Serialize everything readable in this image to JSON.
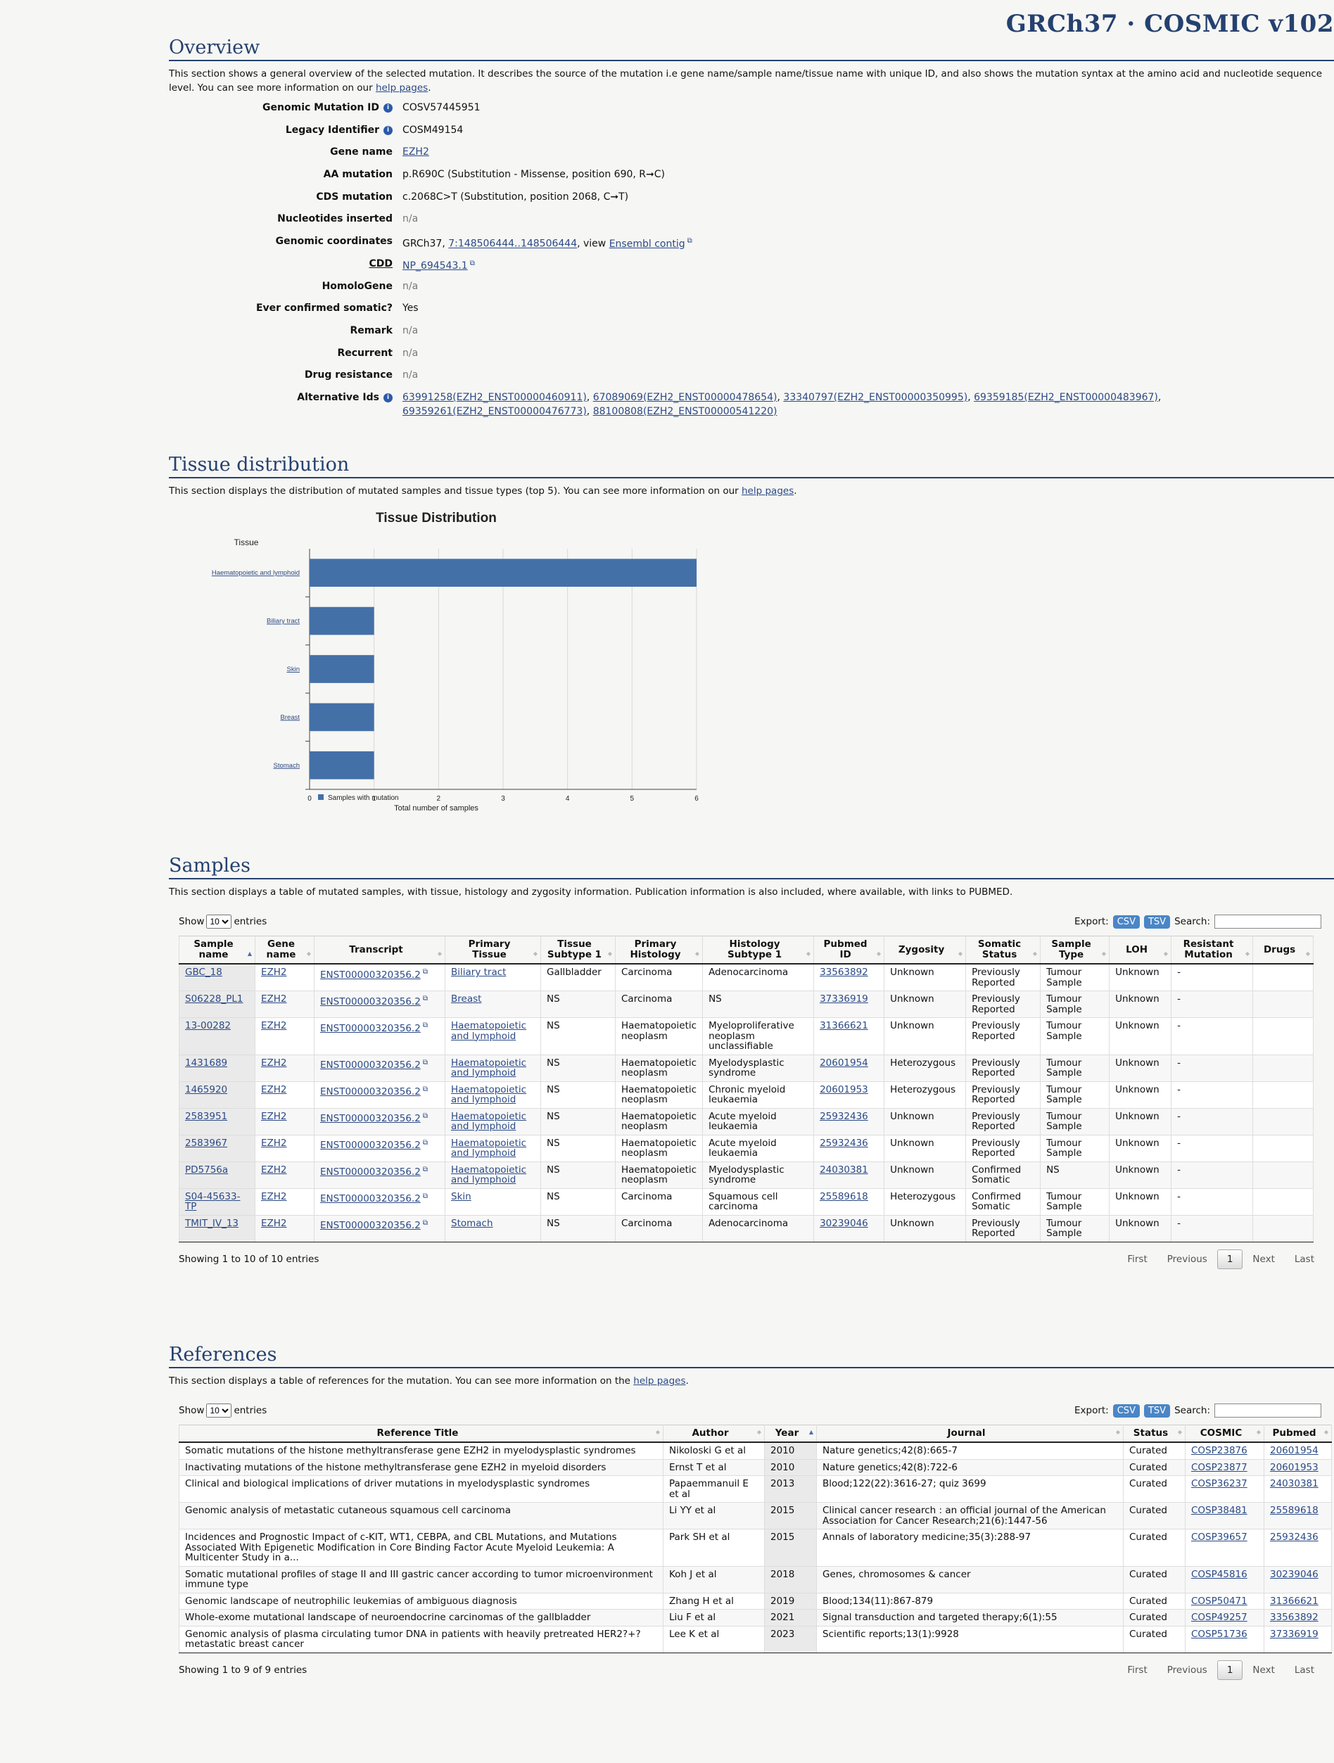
{
  "brand": "GRCh37 · COSMIC v102",
  "overview": {
    "title": "Overview",
    "desc_before": "This section shows a general overview of the selected mutation. It describes the source of the mutation i.e gene name/sample name/tissue name with unique ID, and also shows the mutation syntax at the amino acid and nucleotide sequence level. You can see more information on our ",
    "desc_link": "help pages",
    "desc_after": ".",
    "rows": {
      "genomic_mutation_id": {
        "label": "Genomic Mutation ID",
        "value": "COSV57445951"
      },
      "legacy_identifier": {
        "label": "Legacy Identifier",
        "value": "COSM49154"
      },
      "gene_name": {
        "label": "Gene name",
        "value": "EZH2"
      },
      "aa_mutation": {
        "label": "AA mutation",
        "value": "p.R690C (Substitution - Missense, position 690, R➞C)"
      },
      "cds_mutation": {
        "label": "CDS mutation",
        "value": "c.2068C>T (Substitution, position 2068, C➞T)"
      },
      "nucleotides_inserted": {
        "label": "Nucleotides inserted",
        "value": "n/a"
      },
      "genomic_coordinates": {
        "label": "Genomic coordinates",
        "prefix": "GRCh37, ",
        "link": "7:148506444..148506444",
        "mid": ", view ",
        "link2": "Ensembl contig"
      },
      "cdd": {
        "label": "CDD",
        "value": "NP_694543.1"
      },
      "homologene": {
        "label": "HomoloGene",
        "value": "n/a"
      },
      "ever_confirmed": {
        "label": "Ever confirmed somatic?",
        "value": "Yes"
      },
      "remark": {
        "label": "Remark",
        "value": "n/a"
      },
      "recurrent": {
        "label": "Recurrent",
        "value": "n/a"
      },
      "drug_resistance": {
        "label": "Drug resistance",
        "value": "n/a"
      },
      "alternative_ids": {
        "label": "Alternative Ids",
        "items": [
          "63991258(EZH2_ENST00000460911)",
          "67089069(EZH2_ENST00000478654)",
          "33340797(EZH2_ENST00000350995)",
          "69359185(EZH2_ENST00000483967)",
          "69359261(EZH2_ENST00000476773)",
          "88100808(EZH2_ENST00000541220)"
        ]
      }
    }
  },
  "tissue": {
    "title": "Tissue distribution",
    "desc_before": "This section displays the distribution of mutated samples and tissue types (top 5). You can see more information on our ",
    "desc_link": "help pages",
    "desc_after": "."
  },
  "chart_data": {
    "type": "bar",
    "orientation": "horizontal",
    "title": "Tissue Distribution",
    "ylabel": "Tissue",
    "xlabel": "Total number of samples",
    "categories": [
      "Haematopoietic and lymphoid",
      "Biliary tract",
      "Skin",
      "Breast",
      "Stomach"
    ],
    "series": [
      {
        "name": "Samples with mutation",
        "values": [
          6,
          1,
          1,
          1,
          1
        ],
        "color": "#4470a8"
      }
    ],
    "xlim": [
      0,
      6
    ],
    "xticks": [
      0,
      1,
      2,
      3,
      4,
      5,
      6
    ],
    "grid": true,
    "legend": "bottom-left"
  },
  "samples": {
    "title": "Samples",
    "desc": "This section displays a table of mutated samples, with tissue, histology and zygosity information. Publication information is also included, where available, with links to PUBMED.",
    "show_label": "Show",
    "entries_label": "entries",
    "page_size": "10",
    "export_label": "Export:",
    "csv": "CSV",
    "tsv": "TSV",
    "search_label": "Search:",
    "columns": [
      "Sample name",
      "Gene name",
      "Transcript",
      "Primary Tissue",
      "Tissue Subtype 1",
      "Primary Histology",
      "Histology Subtype 1",
      "Pubmed ID",
      "Zygosity",
      "Somatic Status",
      "Sample Type",
      "LOH",
      "Resistant Mutation",
      "Drugs"
    ],
    "rows": [
      [
        "GBC_18",
        "EZH2",
        "ENST00000320356.2",
        "Biliary tract",
        "Gallbladder",
        "Carcinoma",
        "Adenocarcinoma",
        "33563892",
        "Unknown",
        "Previously Reported",
        "Tumour Sample",
        "Unknown",
        "-",
        ""
      ],
      [
        "S06228_PL1",
        "EZH2",
        "ENST00000320356.2",
        "Breast",
        "NS",
        "Carcinoma",
        "NS",
        "37336919",
        "Unknown",
        "Previously Reported",
        "Tumour Sample",
        "Unknown",
        "-",
        ""
      ],
      [
        "13-00282",
        "EZH2",
        "ENST00000320356.2",
        "Haematopoietic and lymphoid",
        "NS",
        "Haematopoietic neoplasm",
        "Myeloproliferative neoplasm unclassifiable",
        "31366621",
        "Unknown",
        "Previously Reported",
        "Tumour Sample",
        "Unknown",
        "-",
        ""
      ],
      [
        "1431689",
        "EZH2",
        "ENST00000320356.2",
        "Haematopoietic and lymphoid",
        "NS",
        "Haematopoietic neoplasm",
        "Myelodysplastic syndrome",
        "20601954",
        "Heterozygous",
        "Previously Reported",
        "Tumour Sample",
        "Unknown",
        "-",
        ""
      ],
      [
        "1465920",
        "EZH2",
        "ENST00000320356.2",
        "Haematopoietic and lymphoid",
        "NS",
        "Haematopoietic neoplasm",
        "Chronic myeloid leukaemia",
        "20601953",
        "Heterozygous",
        "Previously Reported",
        "Tumour Sample",
        "Unknown",
        "-",
        ""
      ],
      [
        "2583951",
        "EZH2",
        "ENST00000320356.2",
        "Haematopoietic and lymphoid",
        "NS",
        "Haematopoietic neoplasm",
        "Acute myeloid leukaemia",
        "25932436",
        "Unknown",
        "Previously Reported",
        "Tumour Sample",
        "Unknown",
        "-",
        ""
      ],
      [
        "2583967",
        "EZH2",
        "ENST00000320356.2",
        "Haematopoietic and lymphoid",
        "NS",
        "Haematopoietic neoplasm",
        "Acute myeloid leukaemia",
        "25932436",
        "Unknown",
        "Previously Reported",
        "Tumour Sample",
        "Unknown",
        "-",
        ""
      ],
      [
        "PD5756a",
        "EZH2",
        "ENST00000320356.2",
        "Haematopoietic and lymphoid",
        "NS",
        "Haematopoietic neoplasm",
        "Myelodysplastic syndrome",
        "24030381",
        "Unknown",
        "Confirmed Somatic",
        "NS",
        "Unknown",
        "-",
        ""
      ],
      [
        "S04-45633-TP",
        "EZH2",
        "ENST00000320356.2",
        "Skin",
        "NS",
        "Carcinoma",
        "Squamous cell carcinoma",
        "25589618",
        "Heterozygous",
        "Confirmed Somatic",
        "Tumour Sample",
        "Unknown",
        "-",
        ""
      ],
      [
        "TMIT_IV_13",
        "EZH2",
        "ENST00000320356.2",
        "Stomach",
        "NS",
        "Carcinoma",
        "Adenocarcinoma",
        "30239046",
        "Unknown",
        "Previously Reported",
        "Tumour Sample",
        "Unknown",
        "-",
        ""
      ]
    ],
    "showing": "Showing 1 to 10 of 10 entries",
    "pager": {
      "first": "First",
      "previous": "Previous",
      "current": "1",
      "next": "Next",
      "last": "Last"
    }
  },
  "references": {
    "title": "References",
    "desc_before": "This section displays a table of references for the mutation. You can see more information on the ",
    "desc_link": "help pages",
    "desc_after": ".",
    "show_label": "Show",
    "entries_label": "entries",
    "page_size": "10",
    "export_label": "Export:",
    "csv": "CSV",
    "tsv": "TSV",
    "search_label": "Search:",
    "columns": [
      "Reference Title",
      "Author",
      "Year",
      "Journal",
      "Status",
      "COSMIC",
      "Pubmed"
    ],
    "rows": [
      [
        "Somatic mutations of the histone methyltransferase gene EZH2 in myelodysplastic syndromes",
        "Nikoloski G et al",
        "2010",
        "Nature genetics;42(8):665-7",
        "Curated",
        "COSP23876",
        "20601954"
      ],
      [
        "Inactivating mutations of the histone methyltransferase gene EZH2 in myeloid disorders",
        "Ernst T et al",
        "2010",
        "Nature genetics;42(8):722-6",
        "Curated",
        "COSP23877",
        "20601953"
      ],
      [
        "Clinical and biological implications of driver mutations in myelodysplastic syndromes",
        "Papaemmanuil E et al",
        "2013",
        "Blood;122(22):3616-27; quiz 3699",
        "Curated",
        "COSP36237",
        "24030381"
      ],
      [
        "Genomic analysis of metastatic cutaneous squamous cell carcinoma",
        "Li YY et al",
        "2015",
        "Clinical cancer research : an official journal of the American Association for Cancer Research;21(6):1447-56",
        "Curated",
        "COSP38481",
        "25589618"
      ],
      [
        "Incidences and Prognostic Impact of c-KIT, WT1, CEBPA, and CBL Mutations, and Mutations Associated With Epigenetic Modification in Core Binding Factor Acute Myeloid Leukemia: A Multicenter Study in a...",
        "Park SH et al",
        "2015",
        "Annals of laboratory medicine;35(3):288-97",
        "Curated",
        "COSP39657",
        "25932436"
      ],
      [
        "Somatic mutational profiles of stage II and III gastric cancer according to tumor microenvironment immune type",
        "Koh J et al",
        "2018",
        "Genes, chromosomes & cancer",
        "Curated",
        "COSP45816",
        "30239046"
      ],
      [
        "Genomic landscape of neutrophilic leukemias of ambiguous diagnosis",
        "Zhang H et al",
        "2019",
        "Blood;134(11):867-879",
        "Curated",
        "COSP50471",
        "31366621"
      ],
      [
        "Whole-exome mutational landscape of neuroendocrine carcinomas of the gallbladder",
        "Liu F et al",
        "2021",
        "Signal transduction and targeted therapy;6(1):55",
        "Curated",
        "COSP49257",
        "33563892"
      ],
      [
        "Genomic analysis of plasma circulating tumor DNA in patients with heavily pretreated HER2?+?metastatic breast cancer",
        "Lee K et al",
        "2023",
        "Scientific reports;13(1):9928",
        "Curated",
        "COSP51736",
        "37336919"
      ]
    ],
    "showing": "Showing 1 to 9 of 9 entries",
    "pager": {
      "first": "First",
      "previous": "Previous",
      "current": "1",
      "next": "Next",
      "last": "Last"
    }
  }
}
